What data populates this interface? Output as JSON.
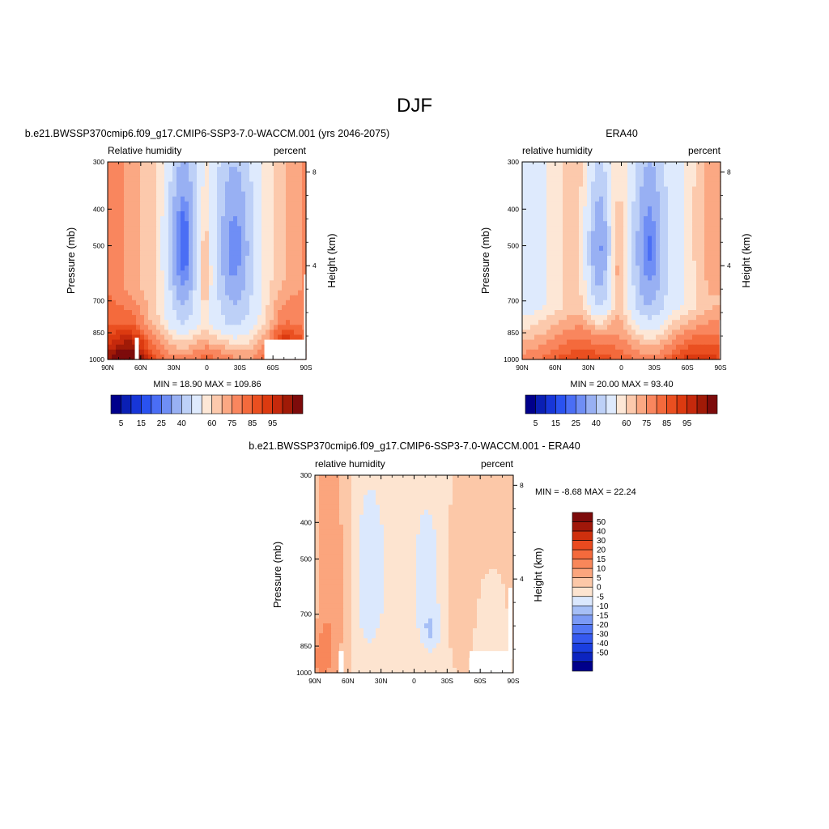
{
  "page_title": "DJF",
  "palettes": {
    "rh": [
      "#00008b",
      "#0a1fb4",
      "#1736d8",
      "#2a52f0",
      "#4a6ef5",
      "#6f8ef5",
      "#98b0f3",
      "#bdd0f7",
      "#deeafd",
      "#fde7d6",
      "#fcc9ac",
      "#fba883",
      "#f9865e",
      "#f46a3c",
      "#ea4f20",
      "#dc3a10",
      "#c5290c",
      "#a01a07",
      "#7d0b0b"
    ],
    "diff": [
      "#00008b",
      "#0c24c0",
      "#1a3ee0",
      "#3559ef",
      "#5277f5",
      "#7b9af5",
      "#a6bff6",
      "#dbe8fd",
      "#fde4d0",
      "#fcc8a8",
      "#fba57d",
      "#f8875a",
      "#f46a3c",
      "#ea4a1f",
      "#cf300e",
      "#a0170a",
      "#7d0b0b"
    ]
  },
  "color_bars": [
    {
      "labels": [
        "5",
        "15",
        "25",
        "40",
        "60",
        "75",
        "85",
        "95"
      ]
    },
    {
      "labels": [
        "5",
        "15",
        "25",
        "40",
        "60",
        "75",
        "85",
        "95"
      ]
    },
    {
      "labels": [
        "50",
        "40",
        "30",
        "20",
        "15",
        "10",
        "5",
        "0",
        "-5",
        "-10",
        "-15",
        "-20",
        "-30",
        "-40",
        "-50"
      ]
    }
  ],
  "chart_data": [
    {
      "type": "heatmap",
      "panel": "model",
      "title": "b.e21.BWSSP370cmip6.f09_g17.CMIP6-SSP3-7.0-WACCM.001 (yrs 2046-2075)",
      "left_label": "Relative humidity",
      "right_label": "percent",
      "ylabel": "Pressure (mb)",
      "y2label": "Height (km)",
      "xticks": [
        "90N",
        "60N",
        "30N",
        "0",
        "30S",
        "60S",
        "90S"
      ],
      "yticks": [
        "300",
        "400",
        "500",
        "700",
        "850",
        "1000"
      ],
      "y2ticks": [
        "8",
        "4"
      ],
      "stats": "MIN =  18.90  MAX = 109.86",
      "min": 18.9,
      "max": 109.86,
      "levels": [
        5,
        10,
        15,
        20,
        25,
        30,
        40,
        50,
        60,
        65,
        70,
        75,
        80,
        85,
        90,
        95,
        100,
        105
      ]
    },
    {
      "type": "heatmap",
      "panel": "obs",
      "title": "ERA40",
      "left_label": "relative humidity",
      "right_label": "percent",
      "ylabel": "Pressure (mb)",
      "y2label": "Height (km)",
      "xticks": [
        "90N",
        "60N",
        "30N",
        "0",
        "30S",
        "60S",
        "90S"
      ],
      "yticks": [
        "300",
        "400",
        "500",
        "700",
        "850",
        "1000"
      ],
      "y2ticks": [
        "8",
        "4"
      ],
      "stats": "MIN =  20.00  MAX =  93.40",
      "min": 20.0,
      "max": 93.4,
      "levels": [
        5,
        10,
        15,
        20,
        25,
        30,
        40,
        50,
        60,
        65,
        70,
        75,
        80,
        85,
        90,
        95,
        100,
        105
      ]
    },
    {
      "type": "heatmap",
      "panel": "difference",
      "title": "b.e21.BWSSP370cmip6.f09_g17.CMIP6-SSP3-7.0-WACCM.001 - ERA40",
      "left_label": "relative humidity",
      "right_label": "percent",
      "ylabel": "Pressure (mb)",
      "y2label": "Height (km)",
      "xticks": [
        "90N",
        "60N",
        "30N",
        "0",
        "30S",
        "60S",
        "90S"
      ],
      "yticks": [
        "300",
        "400",
        "500",
        "700",
        "850",
        "1000"
      ],
      "y2ticks": [
        "8",
        "4"
      ],
      "stats": "MIN =  -8.68  MAX =  22.24",
      "min": -8.68,
      "max": 22.24,
      "levels": [
        -50,
        -40,
        -30,
        -20,
        -15,
        -10,
        -5,
        0,
        5,
        10,
        15,
        20,
        30,
        40,
        50
      ]
    }
  ]
}
